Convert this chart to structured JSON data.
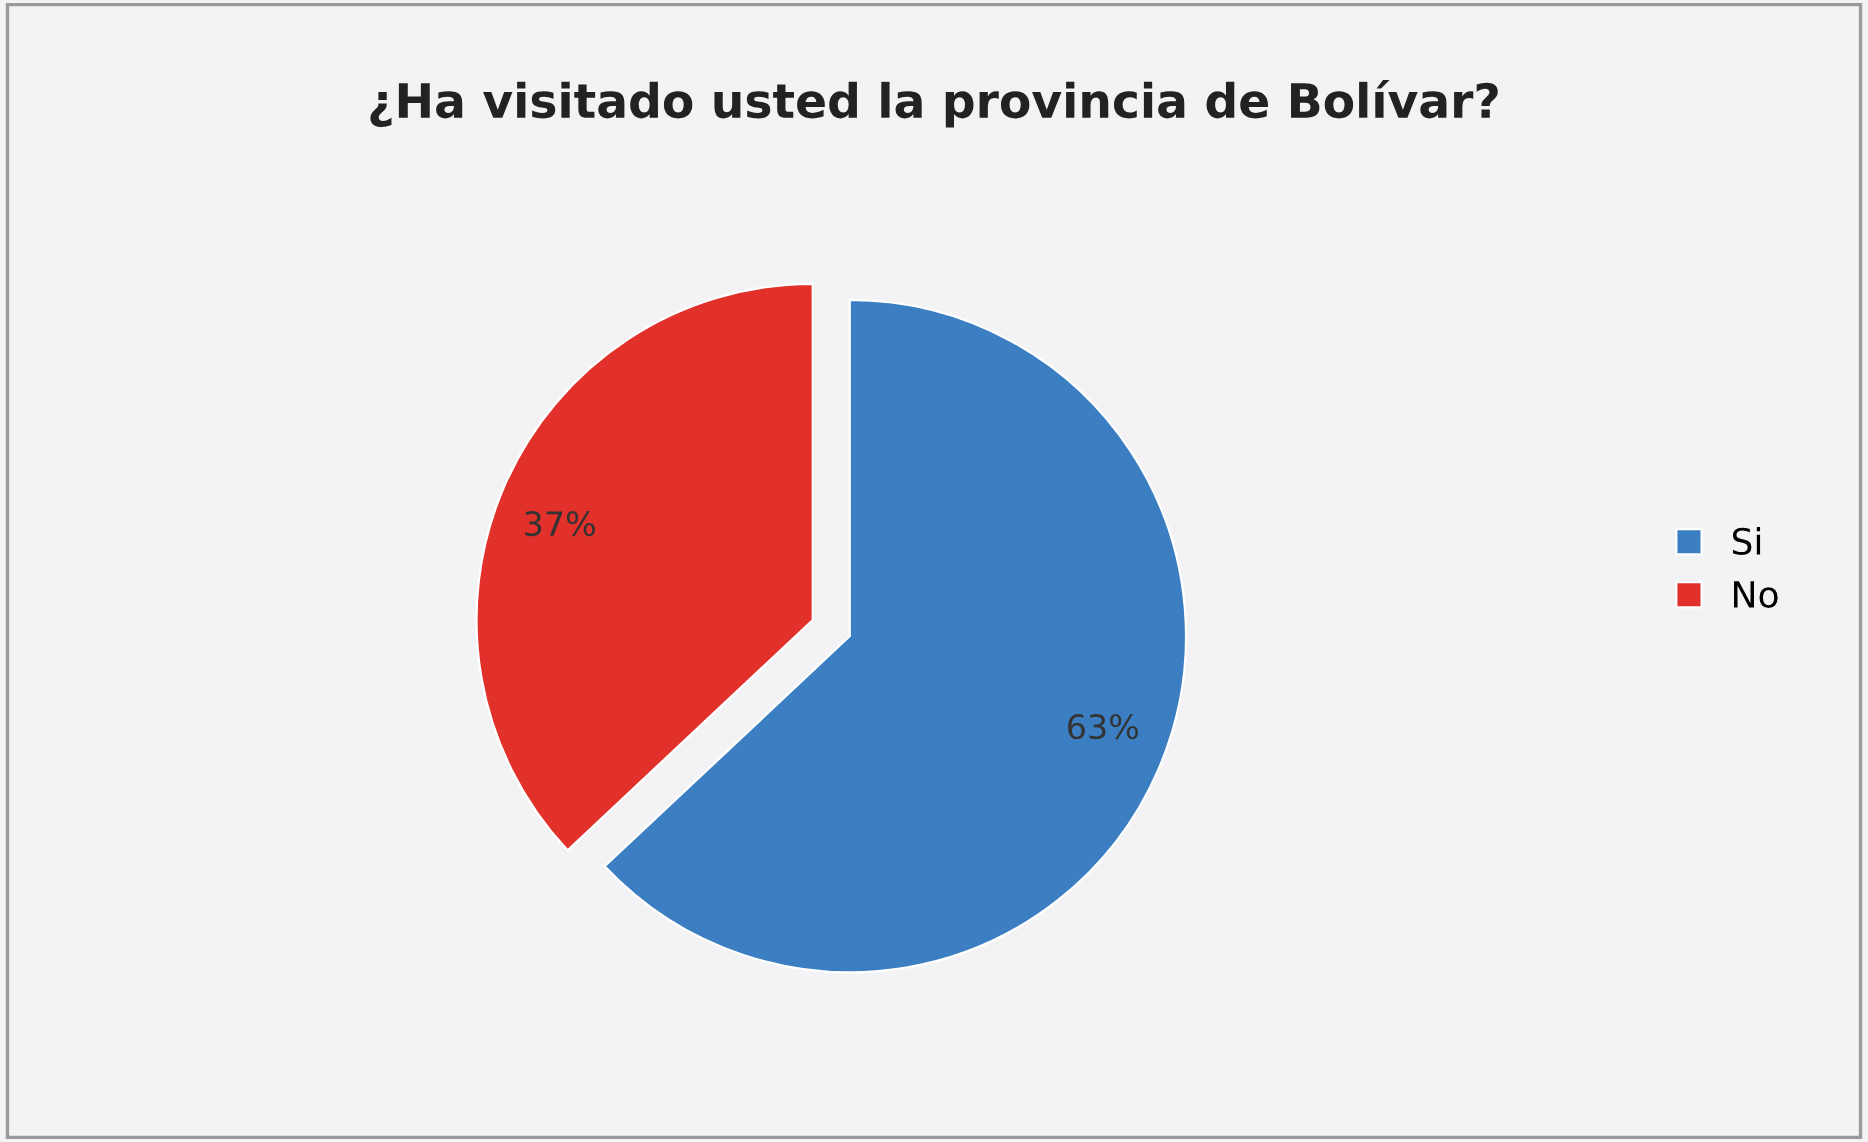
{
  "chart_data": {
    "type": "pie",
    "title": "¿Ha visitado usted la provincia de Bolívar?",
    "categories": [
      "Si",
      "No"
    ],
    "values": [
      63,
      37
    ],
    "value_labels": [
      "63%",
      "37%"
    ],
    "colors": [
      "#3b7fc2",
      "#e2302b"
    ],
    "legend": "right"
  }
}
